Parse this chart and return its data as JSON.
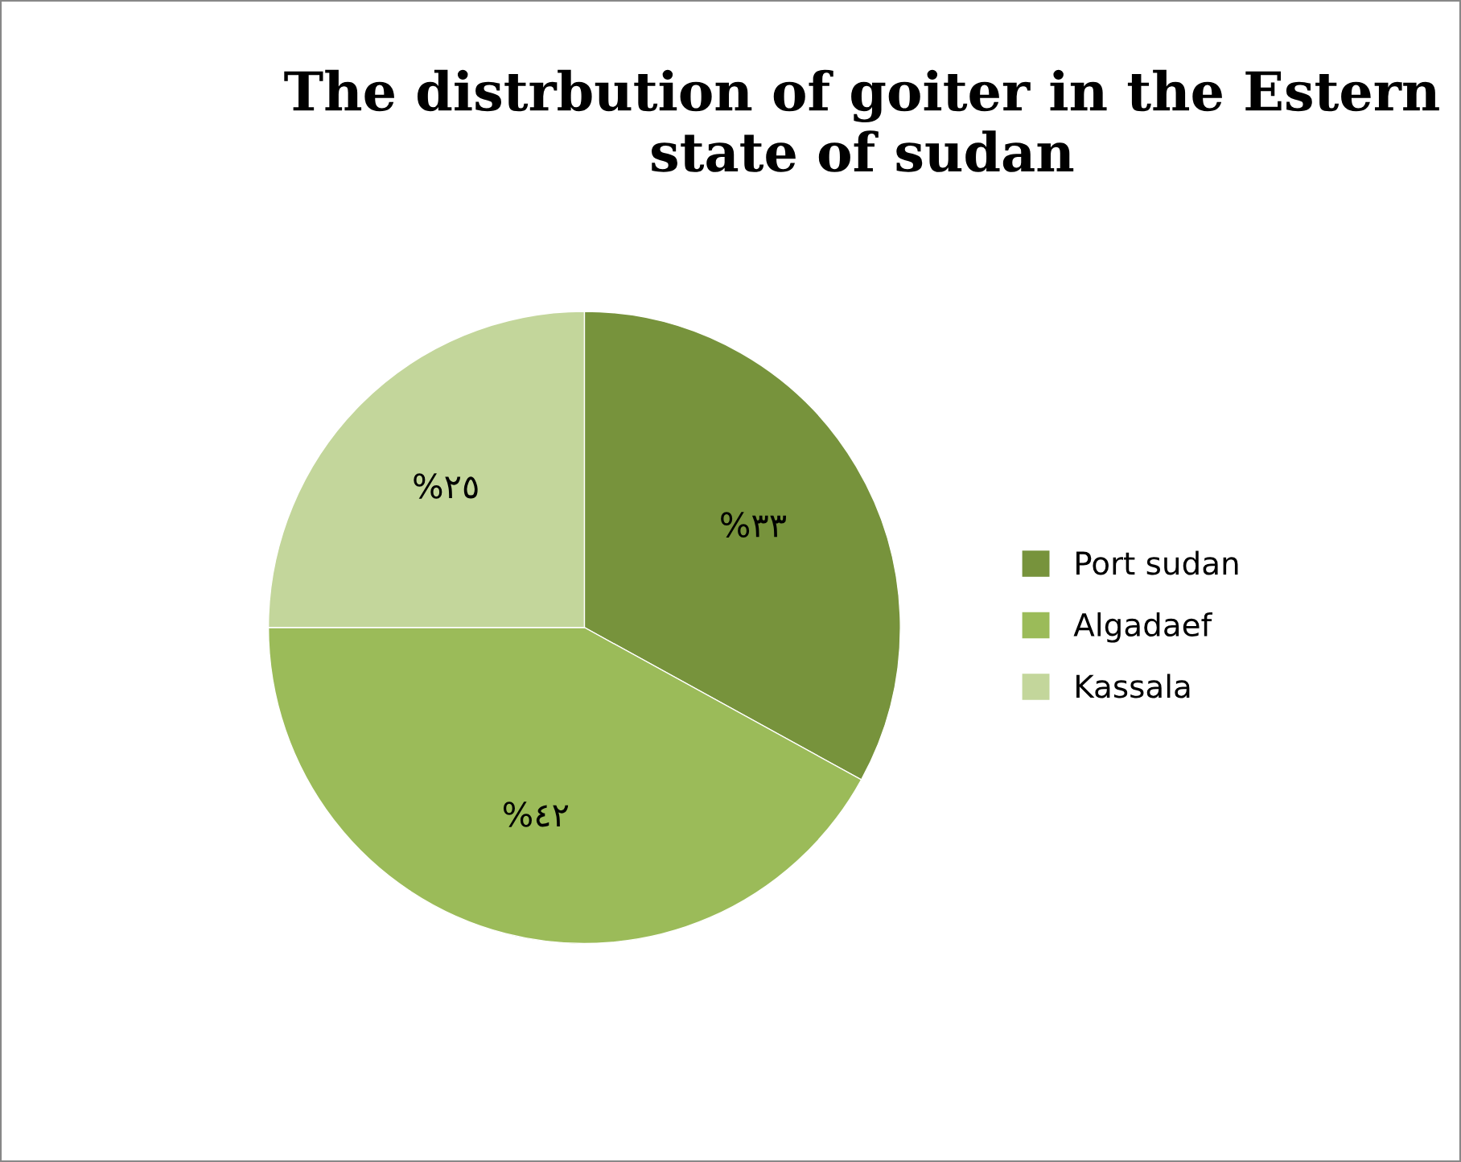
{
  "chart_data": {
    "type": "pie",
    "title": "The distrbution of goiter in the Estern\nstate of sudan",
    "categories": [
      "Port sudan",
      "Algadaef",
      "Kassala"
    ],
    "values": [
      33,
      42,
      25
    ],
    "colors": [
      "#77933c",
      "#9bbb59",
      "#c3d69b"
    ],
    "value_labels": [
      "%٣٣",
      "%٤٢",
      "%٢٥"
    ],
    "legend": "right"
  }
}
